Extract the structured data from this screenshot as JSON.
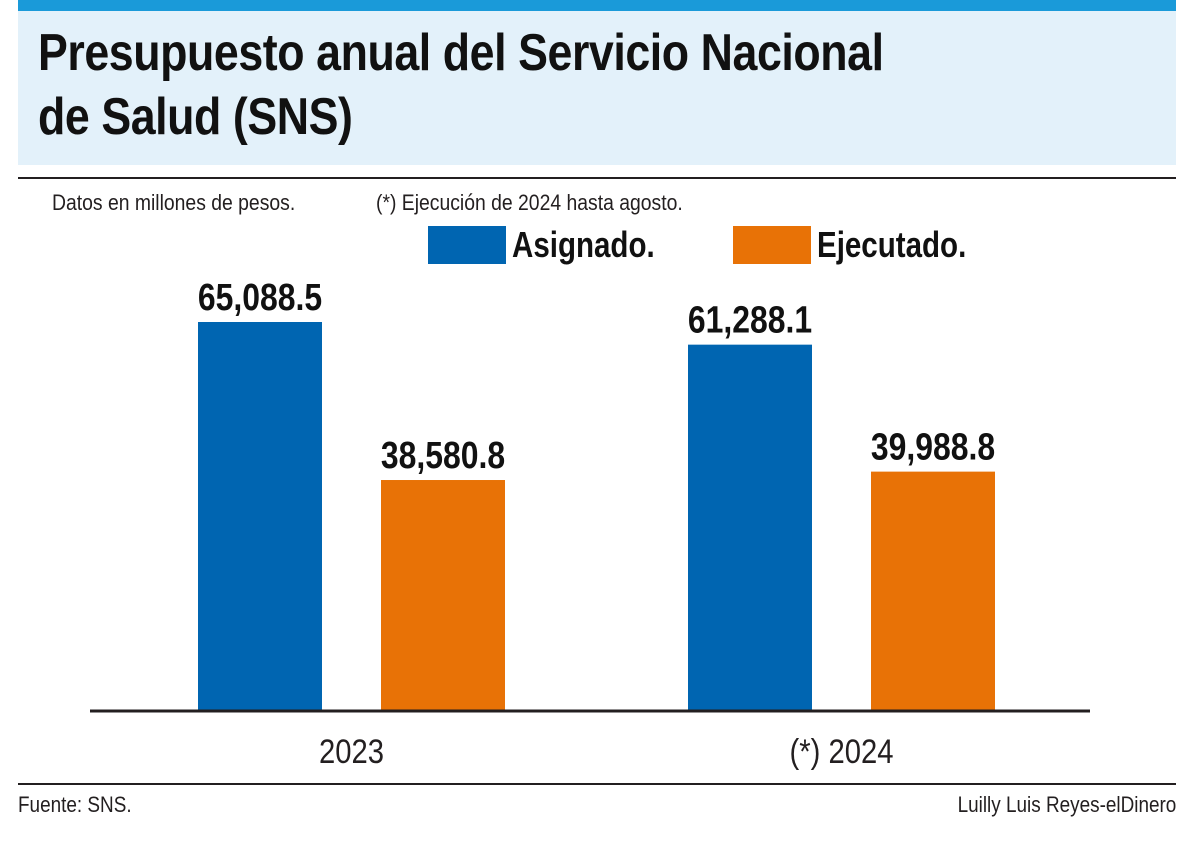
{
  "colors": {
    "asignado": "#0065b1",
    "ejecutado": "#e87206",
    "accent": "#1a9ad9",
    "title_bg": "#e3f1fa"
  },
  "header": {
    "title_line1": "Presupuesto anual del Servicio Nacional",
    "title_line2": "de Salud (SNS)"
  },
  "notes": {
    "units": "Datos en millones de pesos.",
    "execution": "(*) Ejecución de 2024 hasta agosto."
  },
  "legend": {
    "asignado": "Asignado.",
    "ejecutado": "Ejecutado."
  },
  "footer": {
    "source": "Fuente: SNS.",
    "credit": "Luilly Luis Reyes-elDinero"
  },
  "chart_data": {
    "type": "bar",
    "title": "Presupuesto anual del Servicio Nacional de Salud (SNS)",
    "categories": [
      "2023",
      "(*) 2024"
    ],
    "series": [
      {
        "name": "Asignado.",
        "values": [
          65088.5,
          61288.1
        ],
        "labels": [
          "65,088.5",
          "61,288.1"
        ]
      },
      {
        "name": "Ejecutado.",
        "values": [
          38580.8,
          39988.8
        ],
        "labels": [
          "38,580.8",
          "39,988.8"
        ]
      }
    ],
    "xlabel": "",
    "ylabel": "Datos en millones de pesos.",
    "ylim": [
      0,
      80000
    ],
    "grid": false,
    "legend_position": "top-center"
  }
}
